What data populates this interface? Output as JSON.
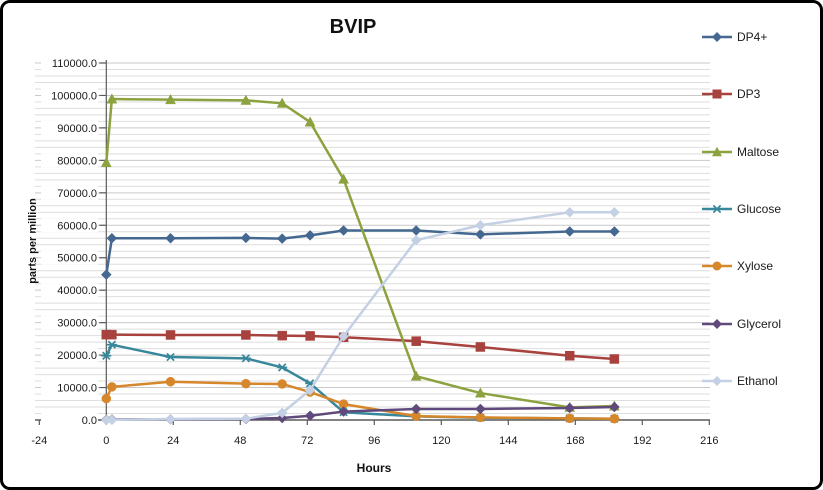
{
  "chart_data": {
    "type": "line",
    "title": "BVIP",
    "xlabel": "Hours",
    "ylabel": "parts per million",
    "xlim": [
      -24,
      216
    ],
    "ylim": [
      0,
      110000
    ],
    "x_major_unit": 24,
    "y_major_unit": 10000,
    "y_minor_unit": 2000,
    "y_tick_decimals": 1,
    "grid": "horizontal-minor-on",
    "legend_position": "right",
    "x": [
      0,
      2,
      23,
      50,
      63,
      73,
      85,
      111,
      134,
      166,
      182
    ],
    "series": [
      {
        "id": "dp4",
        "name": "DP4+",
        "color": "#44688F",
        "marker": "diamond",
        "values": [
          44800,
          56000,
          56000,
          56100,
          55900,
          56900,
          58400,
          58400,
          57200,
          58100,
          58100
        ]
      },
      {
        "id": "dp3",
        "name": "DP3",
        "color": "#A8423F",
        "marker": "square",
        "values": [
          26300,
          26300,
          26200,
          26200,
          26000,
          25900,
          25500,
          24300,
          22500,
          19800,
          18800
        ]
      },
      {
        "id": "maltose",
        "name": "Maltose",
        "color": "#8CA23E",
        "marker": "triangle",
        "values": [
          79300,
          98900,
          98700,
          98500,
          97600,
          91800,
          74200,
          13500,
          8300,
          3900,
          4300
        ]
      },
      {
        "id": "glucose",
        "name": "Glucose",
        "color": "#38879B",
        "marker": "asterisk",
        "values": [
          19800,
          23200,
          19400,
          19000,
          16200,
          11300,
          2400,
          1100,
          700,
          500,
          400
        ]
      },
      {
        "id": "xylose",
        "name": "Xylose",
        "color": "#D6872B",
        "marker": "circle",
        "values": [
          6600,
          10200,
          11800,
          11200,
          11100,
          8600,
          4900,
          1200,
          800,
          500,
          400
        ]
      },
      {
        "id": "glycerol",
        "name": "Glycerol",
        "color": "#604A7B",
        "marker": "diamond",
        "values": [
          100,
          150,
          250,
          300,
          600,
          1300,
          2600,
          3400,
          3400,
          3700,
          4000
        ]
      },
      {
        "id": "ethanol",
        "name": "Ethanol",
        "color": "#C4D0E4",
        "marker": "diamond",
        "values": [
          0,
          50,
          300,
          400,
          2200,
          9200,
          25800,
          55400,
          60000,
          64000,
          64000
        ]
      }
    ],
    "colors": {
      "gridline_minor": "#DEDEDE",
      "gridline_major": "#C9C9C9",
      "axis": "#5A5A5A",
      "text": "#1a1a1a"
    }
  }
}
